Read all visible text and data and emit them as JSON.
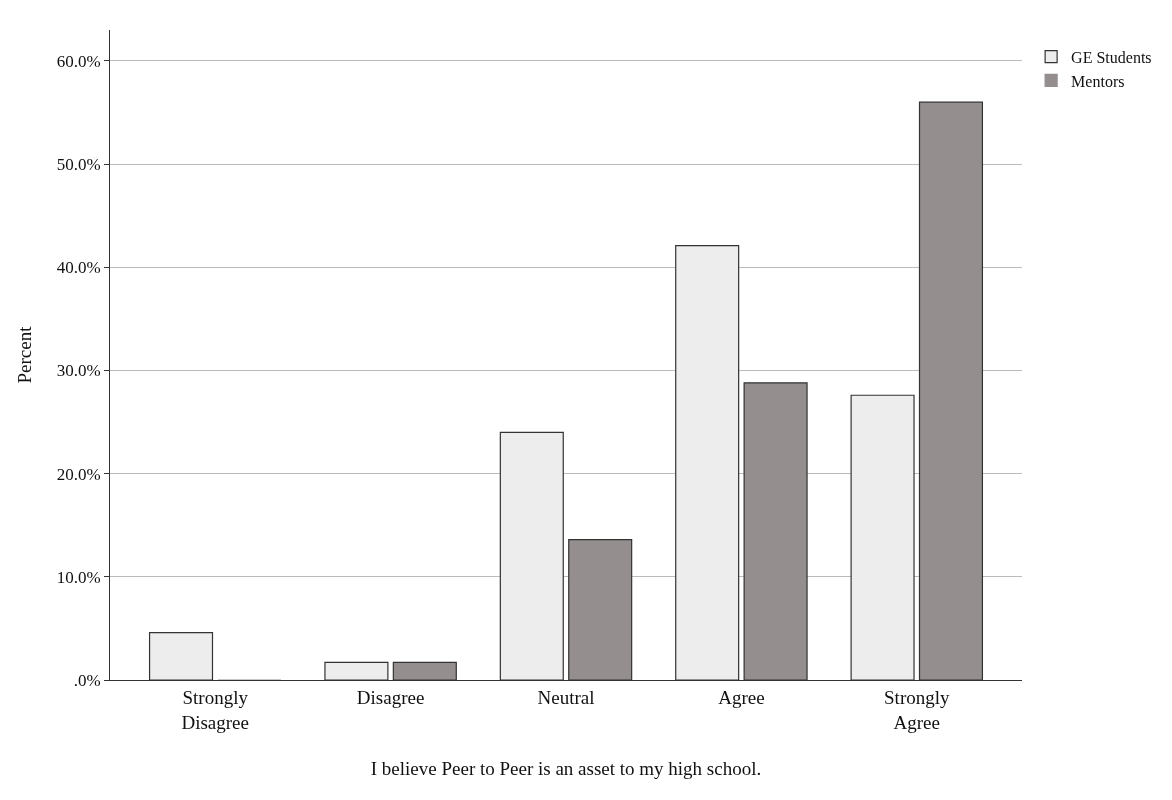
{
  "chart_data": {
    "type": "bar",
    "xlabel": "I believe Peer to Peer is an asset to my high school.",
    "ylabel": "Percent",
    "categories": [
      "Strongly Disagree",
      "Disagree",
      "Neutral",
      "Agree",
      "Strongly Agree"
    ],
    "series": [
      {
        "name": "GE Students",
        "color": "#ededed",
        "values": [
          4.6,
          1.7,
          24.0,
          42.1,
          27.6
        ]
      },
      {
        "name": "Mentors",
        "color": "#948f8e",
        "values": [
          0.0,
          1.7,
          13.6,
          28.8,
          56.0
        ]
      }
    ],
    "ylim": [
      0,
      63
    ],
    "yticks": [
      {
        "value": 0,
        "label": ".0%"
      },
      {
        "value": 10,
        "label": "10.0%"
      },
      {
        "value": 20,
        "label": "20.0%"
      },
      {
        "value": 30,
        "label": "30.0%"
      },
      {
        "value": 40,
        "label": "40.0%"
      },
      {
        "value": 50,
        "label": "50.0%"
      },
      {
        "value": 60,
        "label": "60.0%"
      }
    ],
    "grid": "y",
    "legend": "top right"
  }
}
